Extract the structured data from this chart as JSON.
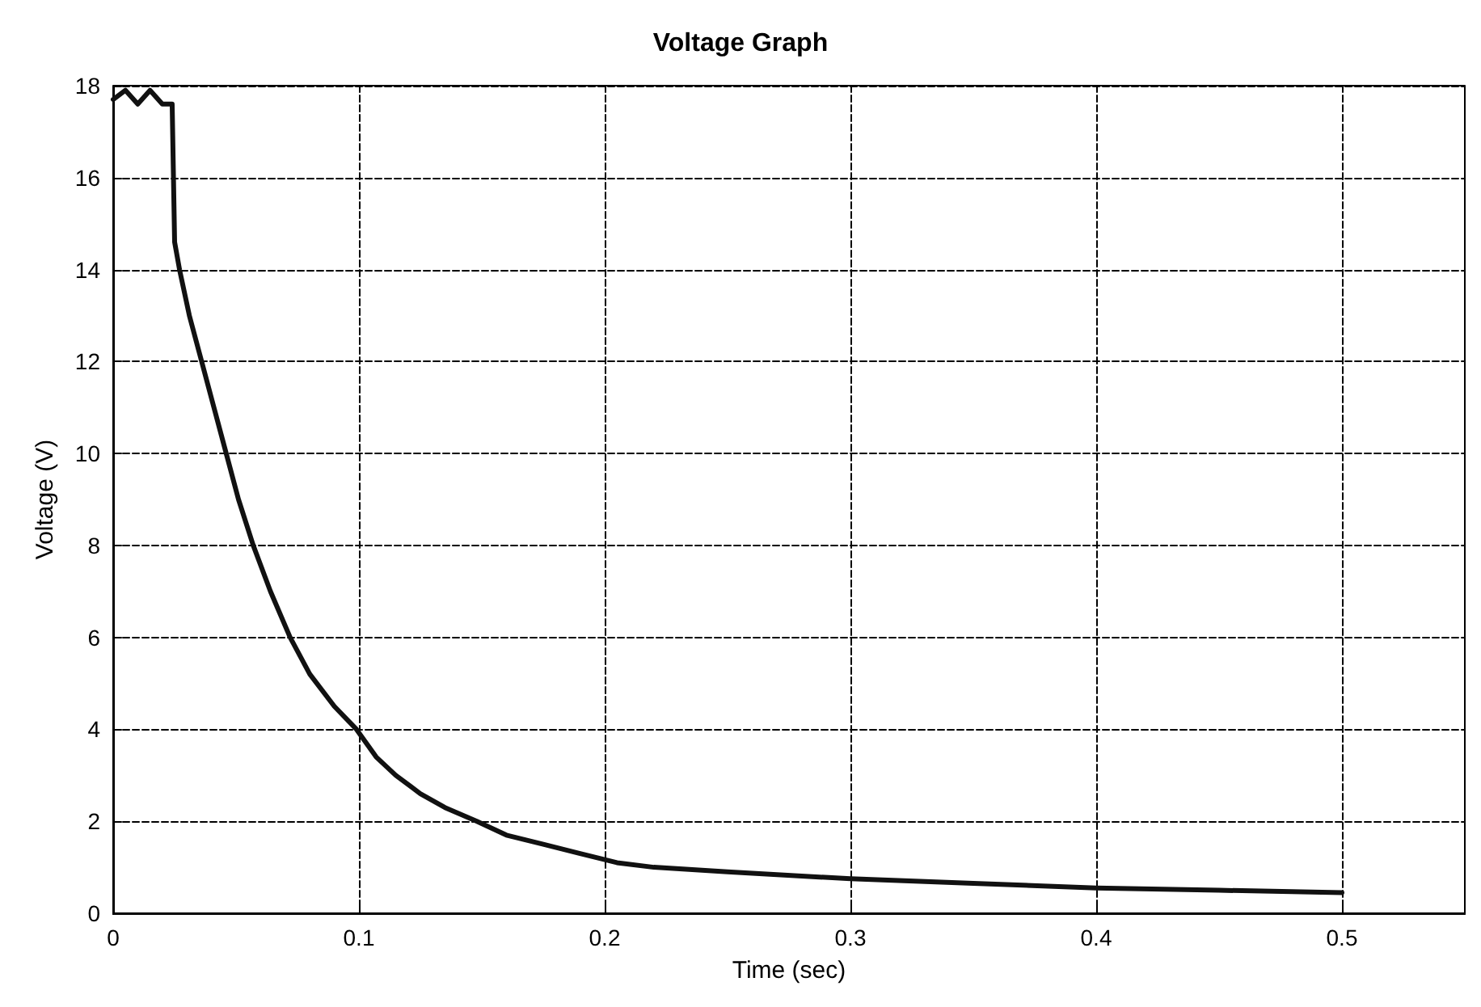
{
  "chart_data": {
    "type": "line",
    "title": "Voltage Graph",
    "xlabel": "Time (sec)",
    "ylabel": "Voltage (V)",
    "xlim": [
      0,
      0.55
    ],
    "xticks": [
      0,
      0.1,
      0.2,
      0.3,
      0.4,
      0.5
    ],
    "ylim": [
      0,
      18
    ],
    "yticks": [
      0,
      2,
      4,
      6,
      8,
      10,
      12,
      14,
      16,
      18
    ],
    "grid": true,
    "marker": "none",
    "line_style": "solid",
    "series": [
      {
        "color": "#111111",
        "x": [
          0,
          0.005,
          0.01,
          0.015,
          0.02,
          0.024,
          0.025,
          0.027,
          0.031,
          0.036,
          0.041,
          0.046,
          0.051,
          0.057,
          0.064,
          0.072,
          0.08,
          0.09,
          0.099,
          0.107,
          0.115,
          0.125,
          0.135,
          0.148,
          0.16,
          0.175,
          0.19,
          0.205,
          0.22,
          0.25,
          0.3,
          0.35,
          0.4,
          0.45,
          0.5
        ],
        "values": [
          17.7,
          17.9,
          17.6,
          17.9,
          17.6,
          17.6,
          14.6,
          14,
          13,
          12,
          11,
          10,
          9,
          8,
          7,
          6,
          5.2,
          4.5,
          4,
          3.4,
          3,
          2.6,
          2.3,
          2,
          1.7,
          1.5,
          1.3,
          1.1,
          1.0,
          0.9,
          0.75,
          0.65,
          0.55,
          0.5,
          0.45
        ]
      }
    ]
  }
}
